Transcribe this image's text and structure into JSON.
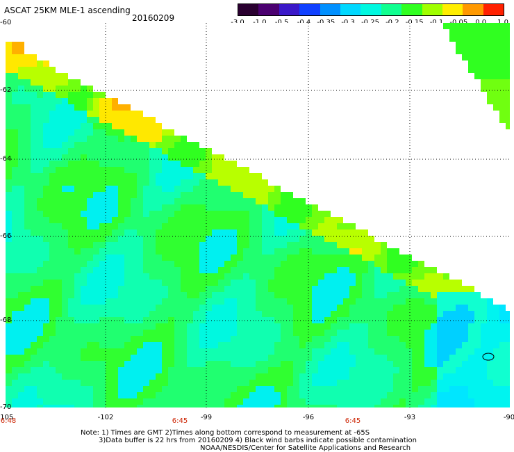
{
  "title": "ASCAT 25KM MLE-1 ascending",
  "date": "20160209",
  "colorbar": {
    "ticks": [
      "-3.0",
      "-1.0",
      "-0.5",
      "-0.4",
      "-0.35",
      "-0.3",
      "-0.25",
      "-0.2",
      "-0.15",
      "-0.1",
      "-0.05",
      "0.0",
      "1.0"
    ],
    "colors": [
      "#2a0030",
      "#4b0070",
      "#3a18c8",
      "#1040ff",
      "#0090ff",
      "#00d8ff",
      "#00f8e0",
      "#10ff90",
      "#30ff20",
      "#a0ff00",
      "#ffee00",
      "#ff9900",
      "#ff2000"
    ]
  },
  "y_axis": {
    "labels": [
      "-60",
      "-62",
      "-64",
      "-66",
      "-68",
      "-70"
    ]
  },
  "x_axis": {
    "labels": [
      "-105",
      "-102",
      "-99",
      "-96",
      "-93",
      "-90"
    ]
  },
  "times": [
    "6:48",
    "6:45",
    "6:45"
  ],
  "notes": [
    "Note: 1) Times are GMT 2)Times along bottom correspond to measurement at -65S",
    "3)Data buffer is 22 hrs from 20160209 4) Black wind barbs indicate possible contamination",
    "NOAA/NESDIS/Center for Satellite Applications and Research"
  ]
}
